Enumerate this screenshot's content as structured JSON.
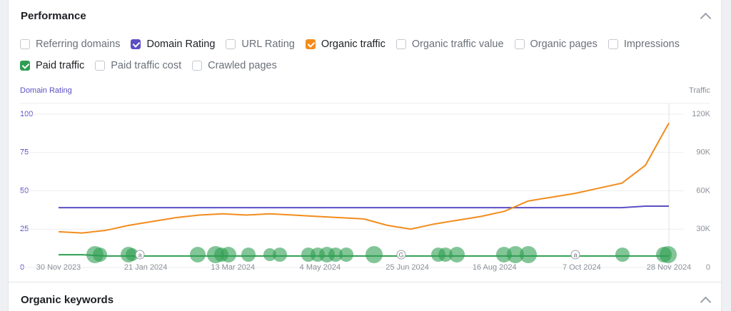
{
  "header": {
    "title": "Performance"
  },
  "toggles": [
    {
      "label": "Referring domains",
      "checked": false
    },
    {
      "label": "Domain Rating",
      "checked": true,
      "color": "#5b4fc4"
    },
    {
      "label": "URL Rating",
      "checked": false
    },
    {
      "label": "Organic traffic",
      "checked": true,
      "color": "#f28c1c"
    },
    {
      "label": "Organic traffic value",
      "checked": false
    },
    {
      "label": "Organic pages",
      "checked": false
    },
    {
      "label": "Impressions",
      "checked": false
    },
    {
      "label": "Paid traffic",
      "checked": true,
      "color": "#2e9e52"
    },
    {
      "label": "Paid traffic cost",
      "checked": false
    },
    {
      "label": "Crawled pages",
      "checked": false
    }
  ],
  "chart_data": {
    "type": "line",
    "y_label": "Domain Rating",
    "y2_label": "Traffic",
    "x": [
      "30 Nov 2023",
      "14 Dec 2023",
      "28 Dec 2023",
      "11 Jan 2024",
      "25 Jan 2024",
      "8 Feb 2024",
      "22 Feb 2024",
      "7 Mar 2024",
      "21 Mar 2024",
      "4 Apr 2024",
      "18 Apr 2024",
      "2 May 2024",
      "16 May 2024",
      "30 May 2024",
      "13 Jun 2024",
      "27 Jun 2024",
      "11 Jul 2024",
      "25 Jul 2024",
      "8 Aug 2024",
      "22 Aug 2024",
      "5 Sep 2024",
      "19 Sep 2024",
      "3 Oct 2024",
      "17 Oct 2024",
      "31 Oct 2024",
      "14 Nov 2024",
      "28 Nov 2024"
    ],
    "xlim": [
      "30 Nov 2023",
      "28 Nov 2024"
    ],
    "xticks": [
      "30 Nov 2023",
      "21 Jan 2024",
      "13 Mar 2024",
      "4 May 2024",
      "25 Jun 2024",
      "16 Aug 2024",
      "7 Oct 2024",
      "28 Nov 2024"
    ],
    "ylim": [
      0,
      100
    ],
    "yticks": [
      0,
      25,
      50,
      75,
      100
    ],
    "y2lim": [
      0,
      120000
    ],
    "y2ticks": [
      0,
      {
        "value": 30000,
        "label": "30K"
      },
      {
        "value": 60000,
        "label": "60K"
      },
      {
        "value": 90000,
        "label": "90K"
      },
      {
        "value": 120000,
        "label": "120K"
      }
    ],
    "grid": true,
    "series": [
      {
        "name": "Domain Rating",
        "color": "#5b4fc4",
        "values": [
          39,
          39,
          39,
          39,
          39,
          39,
          39,
          39,
          39,
          39,
          39,
          39,
          39,
          39,
          39,
          39,
          39,
          39,
          39,
          39,
          39,
          39,
          39,
          39,
          39,
          40,
          40
        ]
      },
      {
        "name": "Organic traffic",
        "color": "#f28c1c",
        "axis": "y2",
        "values": [
          28000,
          27000,
          29000,
          33000,
          36000,
          39000,
          41000,
          42000,
          41000,
          42000,
          41000,
          40000,
          39000,
          38000,
          33000,
          30000,
          34000,
          37000,
          40000,
          44000,
          52000,
          55000,
          58000,
          62000,
          66000,
          80000,
          113000
        ]
      },
      {
        "name": "Paid traffic",
        "color": "#2e9e52",
        "axis": "y2",
        "values": [
          10000,
          10000,
          9000,
          9000,
          9000,
          9000,
          9000,
          9000,
          9000,
          9000,
          9000,
          9000,
          9000,
          9000,
          9000,
          9000,
          9000,
          9000,
          9000,
          9000,
          9000,
          9000,
          9000,
          9000,
          9000,
          9000,
          9000
        ]
      }
    ],
    "markers": [
      "a",
      "G",
      "a"
    ]
  },
  "section": {
    "title": "Organic keywords"
  }
}
